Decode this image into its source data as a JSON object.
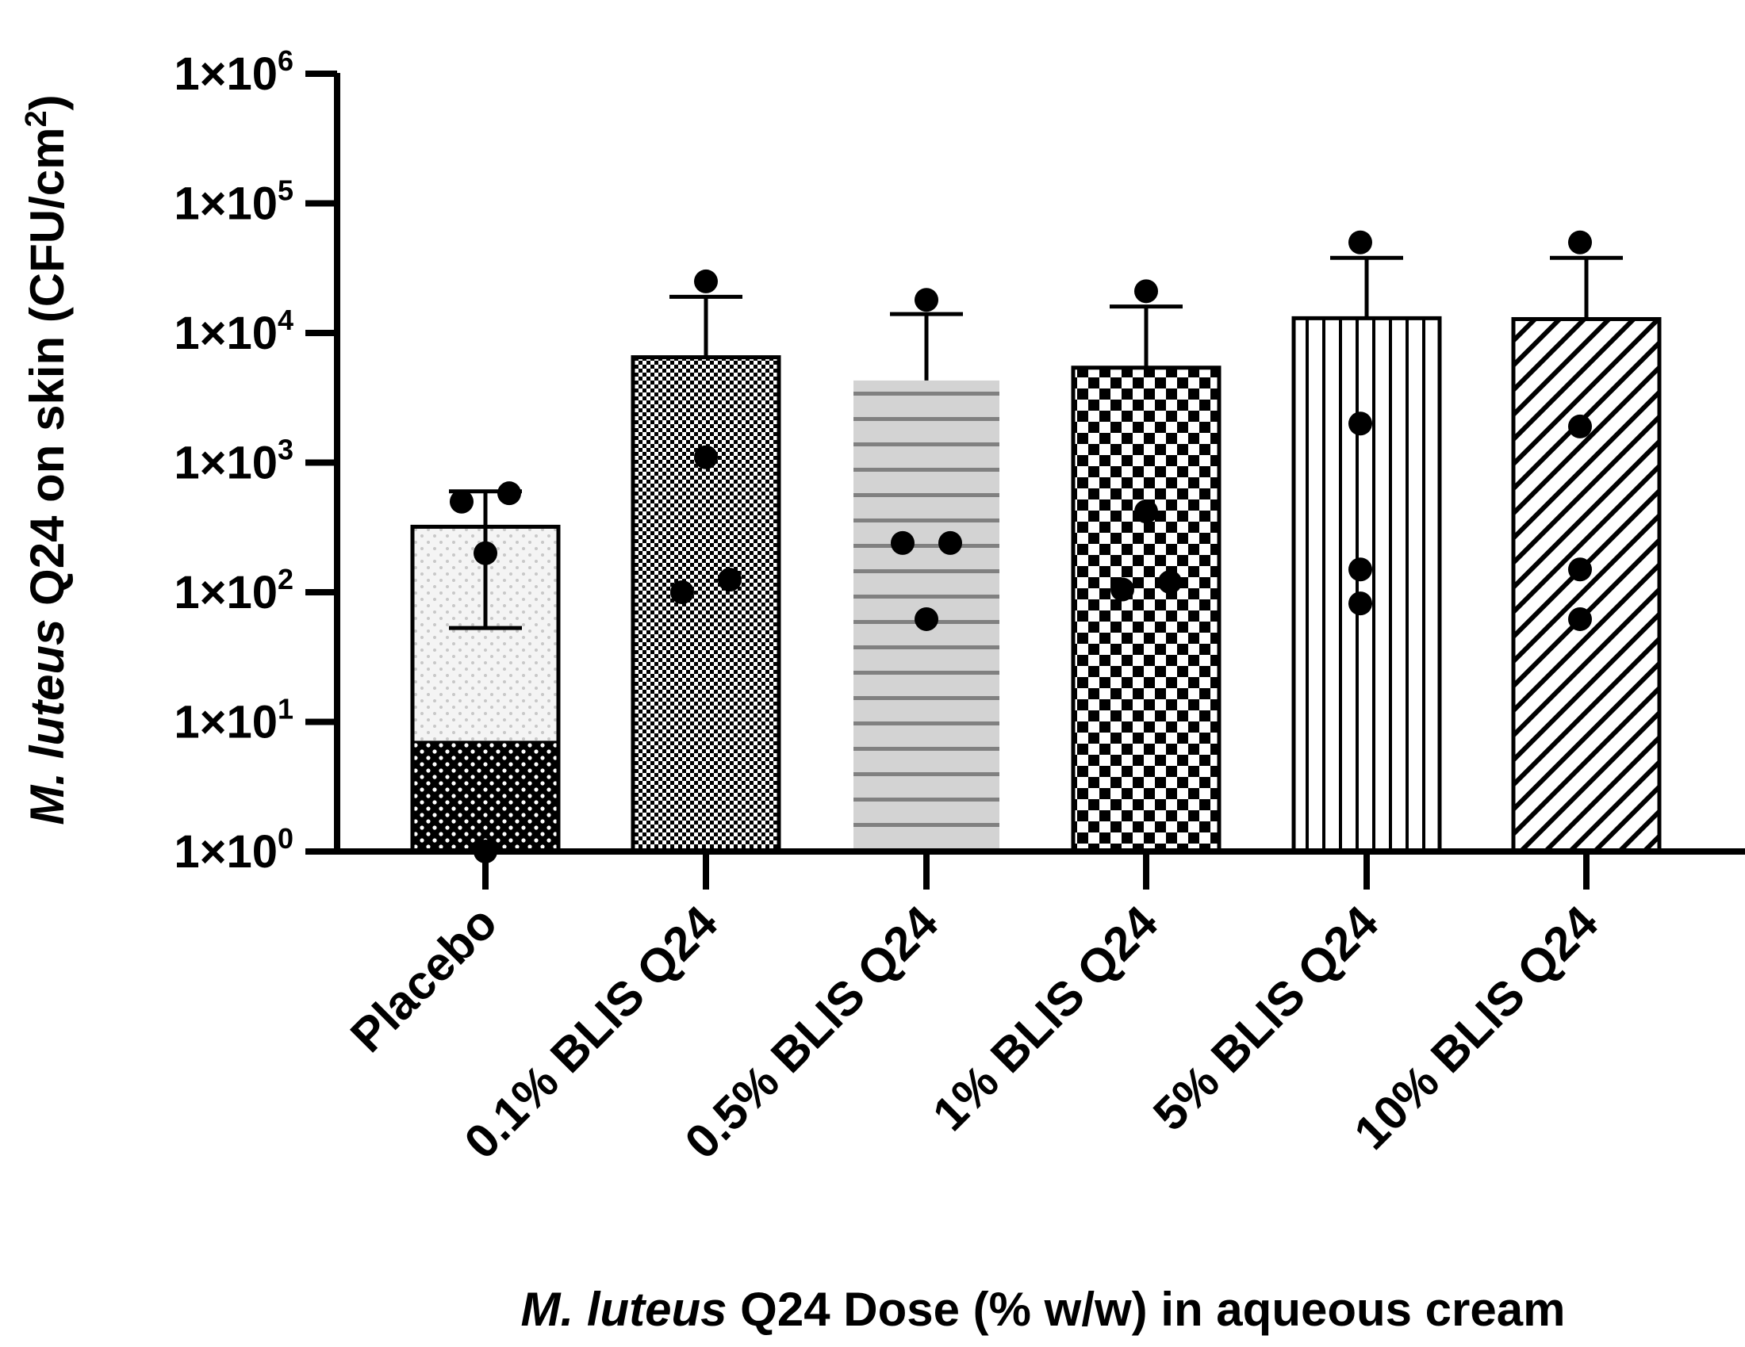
{
  "chart_data": {
    "type": "bar",
    "scale": "log10",
    "categories": [
      "Placebo",
      "0.1% BLIS Q24",
      "0.5% BLIS Q24",
      "1% BLIS Q24",
      "5% BLIS Q24",
      "10% BLIS Q24"
    ],
    "values": [
      320,
      6500,
      4300,
      5400,
      13000,
      12800
    ],
    "error_upper": [
      600,
      19000,
      14000,
      16000,
      38000,
      38000
    ],
    "error_lower": [
      53,
      null,
      null,
      null,
      null,
      null
    ],
    "points": [
      [
        500,
        580,
        200,
        1
      ],
      [
        25000,
        1100,
        100,
        125
      ],
      [
        18000,
        240,
        240,
        62
      ],
      [
        21000,
        420,
        105,
        120
      ],
      [
        50000,
        2000,
        150,
        82
      ],
      [
        50000,
        1900,
        150,
        62
      ]
    ],
    "placebo_dark_segment_top": 7,
    "patterns": [
      "light-dots-with-dark-base",
      "fine-checker",
      "grey-horizontal-lines",
      "checkerboard",
      "vertical-lines",
      "diagonal-hatch"
    ],
    "ylim": [
      1,
      1000000
    ],
    "y_ticks": [
      {
        "exp": 6,
        "base": "1×10",
        "sup": "6"
      },
      {
        "exp": 5,
        "base": "1×10",
        "sup": "5"
      },
      {
        "exp": 4,
        "base": "1×10",
        "sup": "4"
      },
      {
        "exp": 3,
        "base": "1×10",
        "sup": "3"
      },
      {
        "exp": 2,
        "base": "1×10",
        "sup": "2"
      },
      {
        "exp": 1,
        "base": "1×10",
        "sup": "1"
      },
      {
        "exp": 0,
        "base": "1×10",
        "sup": "0"
      }
    ],
    "ylabel": {
      "italic": "M. luteus",
      "rest": " Q24 on skin (CFU/cm",
      "sup": "2",
      "close": ")"
    },
    "xlabel": {
      "italic": "M. luteus",
      "rest": " Q24 Dose (% w/w) in aqueous cream"
    },
    "colors": {
      "ink": "#000000",
      "grey_fill": "#d3d3d3",
      "grey_line": "#808080",
      "dot_light": "#c8c8c8"
    }
  }
}
